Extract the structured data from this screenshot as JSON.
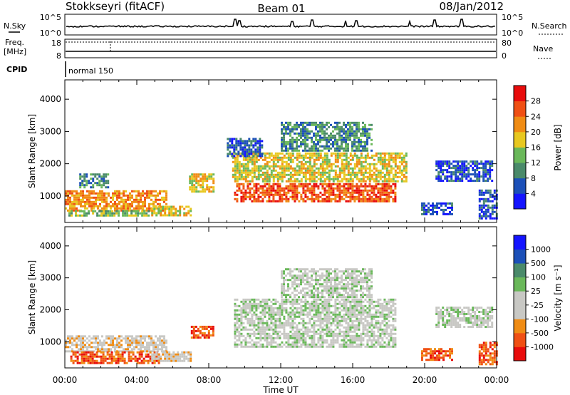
{
  "header": {
    "station": "Stokkseyri (fitACF)",
    "beam": "Beam 01",
    "date": "08/Jan/2012"
  },
  "summary_panels": {
    "noise_left_label": "N.Sky",
    "noise_right_label": "N.Search",
    "noise_tick_top": "10^5",
    "noise_tick_bottom": "10^0",
    "freq_label_1": "Freq.",
    "freq_label_2": "[MHz]",
    "freq_tick_top": "18",
    "freq_tick_bottom": "8",
    "nave_label": "Nave",
    "nave_tick_top": "80",
    "nave_tick_bottom": "0",
    "cpid_label": "CPID",
    "cpid_value": "normal 150"
  },
  "x_axis": {
    "label": "Time UT",
    "ticks": [
      "00:00",
      "04:00",
      "08:00",
      "12:00",
      "16:00",
      "20:00",
      "00:00"
    ]
  },
  "chart_data": [
    {
      "type": "heatmap",
      "name": "power-panel",
      "xlabel": "Time UT",
      "ylabel": "Slant Range [km]",
      "xlim": [
        0,
        24
      ],
      "ylim": [
        180,
        4600
      ],
      "yticks": [
        "1000",
        "2000",
        "3000",
        "4000"
      ],
      "colorbar": {
        "label": "Power [dB]",
        "ticks": [
          "4",
          "8",
          "12",
          "16",
          "20",
          "24",
          "28"
        ],
        "colors": [
          "#1414ff",
          "#1c50b8",
          "#4a8a6a",
          "#6ab85a",
          "#e8c820",
          "#f08c14",
          "#f05014",
          "#e80c0c"
        ]
      },
      "regions": [
        {
          "t": [
            0.0,
            5.6
          ],
          "r": [
            540,
            1180
          ],
          "level": 5
        },
        {
          "t": [
            0.2,
            4.6
          ],
          "r": [
            380,
            560
          ],
          "level": 3
        },
        {
          "t": [
            4.8,
            7.0
          ],
          "r": [
            400,
            700
          ],
          "level": 4
        },
        {
          "t": [
            0.8,
            2.4
          ],
          "r": [
            1250,
            1700
          ],
          "level": 2
        },
        {
          "t": [
            6.9,
            8.3
          ],
          "r": [
            1150,
            1700
          ],
          "level": 4
        },
        {
          "t": [
            9.4,
            18.4
          ],
          "r": [
            820,
            1400
          ],
          "level": 6
        },
        {
          "t": [
            9.3,
            19.0
          ],
          "r": [
            1450,
            2350
          ],
          "level": 4
        },
        {
          "t": [
            9.0,
            11.0
          ],
          "r": [
            2250,
            2800
          ],
          "level": 1
        },
        {
          "t": [
            12.0,
            17.0
          ],
          "r": [
            2400,
            3300
          ],
          "level": 2
        },
        {
          "t": [
            20.6,
            23.8
          ],
          "r": [
            1450,
            2100
          ],
          "level": 1
        },
        {
          "t": [
            19.8,
            21.5
          ],
          "r": [
            420,
            800
          ],
          "level": 1
        },
        {
          "t": [
            23.0,
            24.0
          ],
          "r": [
            300,
            1200
          ],
          "level": 1
        }
      ]
    },
    {
      "type": "heatmap",
      "name": "velocity-panel",
      "xlabel": "Time UT",
      "ylabel": "Slant Range [km]",
      "xlim": [
        0,
        24
      ],
      "ylim": [
        180,
        4600
      ],
      "yticks": [
        "1000",
        "2000",
        "3000",
        "4000"
      ],
      "colorbar": {
        "label": "Velocity [m s⁻¹]",
        "ticks": [
          "-1000",
          "-500",
          "-100",
          "-25",
          "25",
          "100",
          "500",
          "1000"
        ],
        "colors": [
          "#e80c0c",
          "#f05014",
          "#f08c14",
          "#c8c8c4",
          "#c8c8c4",
          "#6ab85a",
          "#4a8a6a",
          "#1c50b8",
          "#1414ff"
        ]
      },
      "regions": [
        {
          "t": [
            0.0,
            5.6
          ],
          "r": [
            700,
            1200
          ],
          "level": 3
        },
        {
          "t": [
            0.3,
            5.2
          ],
          "r": [
            350,
            700
          ],
          "level": 1
        },
        {
          "t": [
            4.8,
            7.0
          ],
          "r": [
            400,
            700
          ],
          "level": 3
        },
        {
          "t": [
            7.0,
            8.3
          ],
          "r": [
            1150,
            1500
          ],
          "level": 1
        },
        {
          "t": [
            9.4,
            18.4
          ],
          "r": [
            850,
            2350
          ],
          "level": 4
        },
        {
          "t": [
            12.0,
            17.0
          ],
          "r": [
            2400,
            3300
          ],
          "level": 4
        },
        {
          "t": [
            20.6,
            23.8
          ],
          "r": [
            1450,
            2100
          ],
          "level": 4
        },
        {
          "t": [
            19.8,
            21.5
          ],
          "r": [
            420,
            800
          ],
          "level": 1
        },
        {
          "t": [
            23.0,
            24.0
          ],
          "r": [
            300,
            1000
          ],
          "level": 1
        }
      ]
    }
  ]
}
